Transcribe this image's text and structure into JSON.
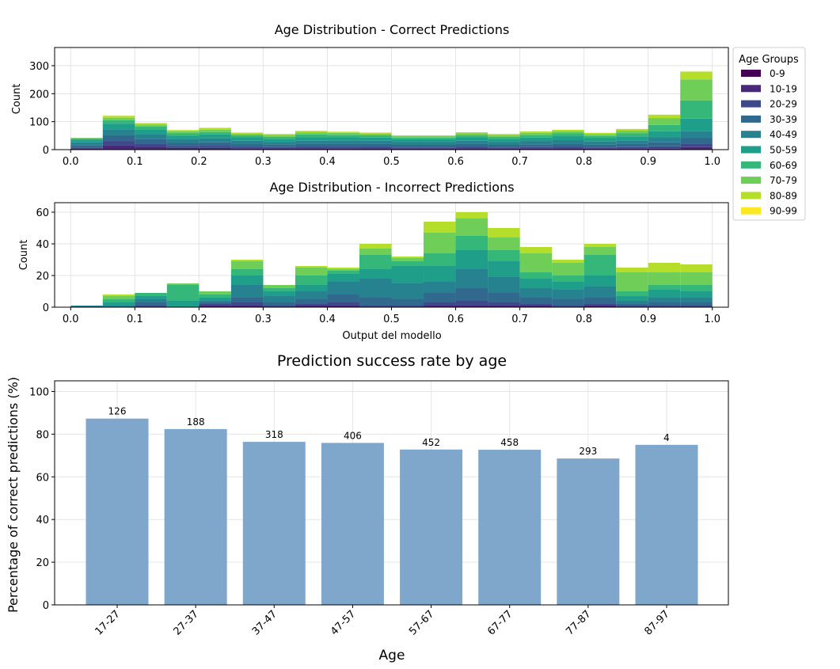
{
  "chart_data": [
    {
      "type": "bar",
      "stacked": true,
      "title": "Age Distribution - Correct Predictions",
      "xlabel": "",
      "ylabel": "Count",
      "xlim": [
        -0.025,
        1.025
      ],
      "ylim": [
        0,
        365
      ],
      "xticks": [
        "0.0",
        "0.1",
        "0.2",
        "0.3",
        "0.4",
        "0.5",
        "0.6",
        "0.7",
        "0.8",
        "0.9",
        "1.0"
      ],
      "yticks": [
        0,
        100,
        200,
        300
      ],
      "grid": true,
      "bin_edges": [
        0.0,
        0.05,
        0.1,
        0.15,
        0.2,
        0.25,
        0.3,
        0.35,
        0.4,
        0.45,
        0.5,
        0.55,
        0.6,
        0.65,
        0.7,
        0.75,
        0.8,
        0.85,
        0.9,
        0.95,
        1.0
      ],
      "series": [
        {
          "name": "0-9",
          "color": "#440154",
          "values": [
            0,
            0,
            0,
            0,
            0,
            0,
            0,
            0,
            0,
            0,
            0,
            0,
            0,
            0,
            0,
            0,
            0,
            0,
            0,
            0
          ]
        },
        {
          "name": "10-19",
          "color": "#482878",
          "values": [
            3,
            16,
            11,
            6,
            6,
            5,
            4,
            4,
            5,
            4,
            3,
            3,
            4,
            3,
            3,
            4,
            3,
            3,
            5,
            9
          ]
        },
        {
          "name": "20-29",
          "color": "#3e4989",
          "values": [
            5,
            15,
            10,
            7,
            8,
            6,
            5,
            6,
            6,
            6,
            5,
            5,
            6,
            5,
            6,
            6,
            5,
            6,
            7,
            12
          ]
        },
        {
          "name": "30-39",
          "color": "#31688e",
          "values": [
            8,
            20,
            16,
            11,
            12,
            10,
            9,
            10,
            10,
            10,
            9,
            9,
            10,
            9,
            10,
            11,
            10,
            11,
            14,
            20
          ]
        },
        {
          "name": "40-49",
          "color": "#26828e",
          "values": [
            10,
            22,
            18,
            13,
            14,
            11,
            10,
            12,
            12,
            12,
            10,
            10,
            12,
            11,
            12,
            13,
            11,
            13,
            18,
            25
          ]
        },
        {
          "name": "50-59",
          "color": "#1f9e89",
          "values": [
            10,
            20,
            18,
            13,
            14,
            12,
            11,
            13,
            12,
            11,
            10,
            10,
            12,
            11,
            12,
            14,
            12,
            14,
            22,
            45
          ]
        },
        {
          "name": "60-69",
          "color": "#35b779",
          "values": [
            4,
            12,
            10,
            8,
            9,
            7,
            7,
            9,
            8,
            8,
            6,
            6,
            8,
            7,
            9,
            10,
            8,
            11,
            22,
            65
          ]
        },
        {
          "name": "70-79",
          "color": "#6ece58",
          "values": [
            2,
            9,
            7,
            7,
            8,
            6,
            6,
            8,
            7,
            6,
            5,
            5,
            6,
            6,
            8,
            8,
            7,
            10,
            25,
            75
          ]
        },
        {
          "name": "80-89",
          "color": "#b5de2b",
          "values": [
            0,
            7,
            5,
            5,
            7,
            4,
            4,
            5,
            4,
            4,
            3,
            3,
            4,
            4,
            5,
            5,
            4,
            6,
            12,
            28
          ]
        },
        {
          "name": "90-99",
          "color": "#fde725",
          "values": [
            0,
            0,
            0,
            0,
            0,
            0,
            0,
            0,
            0,
            0,
            0,
            0,
            0,
            0,
            0,
            0,
            0,
            0,
            0,
            0
          ]
        }
      ],
      "legend": {
        "title": "Age Groups",
        "placement": "outside-right"
      }
    },
    {
      "type": "bar",
      "stacked": true,
      "title": "Age Distribution - Incorrect Predictions",
      "xlabel": "Output del modello",
      "ylabel": "Count",
      "xlim": [
        -0.025,
        1.025
      ],
      "ylim": [
        0,
        66
      ],
      "xticks": [
        "0.0",
        "0.1",
        "0.2",
        "0.3",
        "0.4",
        "0.5",
        "0.6",
        "0.7",
        "0.8",
        "0.9",
        "1.0"
      ],
      "yticks": [
        0,
        20,
        40,
        60
      ],
      "grid": true,
      "bin_edges": [
        0.0,
        0.05,
        0.1,
        0.15,
        0.2,
        0.25,
        0.3,
        0.35,
        0.4,
        0.45,
        0.5,
        0.55,
        0.6,
        0.65,
        0.7,
        0.75,
        0.8,
        0.85,
        0.9,
        0.95,
        1.0
      ],
      "series": [
        {
          "name": "0-9",
          "values": [
            0,
            0,
            0,
            0,
            0,
            0,
            0,
            0,
            0,
            0,
            0,
            0,
            0,
            0,
            0,
            0,
            0,
            0,
            0,
            0
          ]
        },
        {
          "name": "10-19",
          "values": [
            0,
            0,
            0,
            0,
            1,
            1,
            0,
            1,
            1,
            0,
            0,
            1,
            1,
            1,
            1,
            0,
            1,
            0,
            0,
            0
          ]
        },
        {
          "name": "20-29",
          "values": [
            0,
            0,
            1,
            0,
            1,
            2,
            1,
            1,
            2,
            1,
            1,
            2,
            3,
            2,
            1,
            1,
            1,
            1,
            1,
            1
          ]
        },
        {
          "name": "30-39",
          "values": [
            0,
            0,
            2,
            0,
            1,
            3,
            2,
            3,
            5,
            5,
            4,
            6,
            8,
            6,
            4,
            4,
            4,
            1,
            2,
            2
          ]
        },
        {
          "name": "40-49",
          "values": [
            1,
            1,
            2,
            0,
            1,
            8,
            4,
            5,
            8,
            12,
            10,
            7,
            12,
            10,
            6,
            6,
            7,
            2,
            3,
            3
          ]
        },
        {
          "name": "50-59",
          "values": [
            0,
            2,
            2,
            4,
            2,
            6,
            3,
            4,
            5,
            6,
            11,
            10,
            12,
            10,
            6,
            5,
            7,
            3,
            5,
            4
          ]
        },
        {
          "name": "60-69",
          "values": [
            0,
            2,
            2,
            10,
            2,
            4,
            2,
            6,
            2,
            9,
            3,
            8,
            9,
            7,
            4,
            4,
            13,
            3,
            3,
            4
          ]
        },
        {
          "name": "70-79",
          "values": [
            0,
            2,
            0,
            1,
            2,
            5,
            2,
            5,
            1,
            4,
            2,
            13,
            11,
            8,
            12,
            8,
            5,
            12,
            8,
            8
          ]
        },
        {
          "name": "80-89",
          "values": [
            0,
            1,
            0,
            0,
            0,
            1,
            0,
            1,
            1,
            3,
            1,
            7,
            4,
            6,
            4,
            2,
            2,
            3,
            6,
            5
          ]
        },
        {
          "name": "90-99",
          "values": [
            0,
            0,
            0,
            0,
            0,
            0,
            0,
            0,
            0,
            0,
            0,
            0,
            0,
            0,
            0,
            0,
            0,
            0,
            0,
            0
          ]
        }
      ]
    },
    {
      "type": "bar",
      "title": "Prediction success rate by age",
      "xlabel": "Age",
      "ylabel": "Percentage of correct predictions (%)",
      "ylim": [
        0,
        105
      ],
      "yticks": [
        0,
        20,
        40,
        60,
        80,
        100
      ],
      "grid": true,
      "color": "#7fa7cb",
      "categories": [
        "17-27",
        "27-37",
        "37-47",
        "47-57",
        "57-67",
        "67-77",
        "77-87",
        "87-97"
      ],
      "values": [
        87.3,
        82.4,
        76.4,
        75.9,
        72.8,
        72.7,
        68.6,
        75.0
      ],
      "labels": [
        "126",
        "188",
        "318",
        "406",
        "452",
        "458",
        "293",
        "4"
      ]
    }
  ]
}
